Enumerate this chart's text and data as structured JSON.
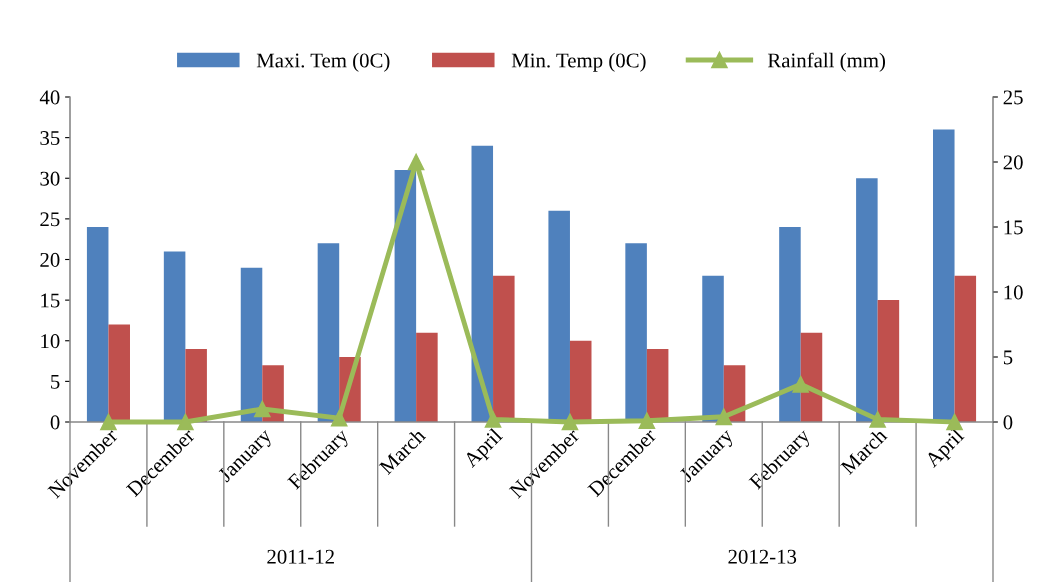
{
  "chart_data": {
    "type": "bar",
    "categories": [
      "November",
      "December",
      "January",
      "February",
      "March",
      "April",
      "November",
      "December",
      "January",
      "February",
      "March",
      "April"
    ],
    "series": [
      {
        "name": "Maxi. Tem (0C)",
        "color": "#4f81bd",
        "values": [
          24,
          21,
          19,
          22,
          31,
          34,
          26,
          22,
          18,
          24,
          30,
          36
        ]
      },
      {
        "name": "Min. Temp (0C)",
        "color": "#c0504d",
        "values": [
          12,
          9,
          7,
          8,
          11,
          18,
          10,
          9,
          7,
          11,
          15,
          18
        ]
      },
      {
        "name": "Rainfall (mm)",
        "type": "line",
        "axis": "y2",
        "color": "#9bbb59",
        "marker": "triangle",
        "values": [
          0,
          0,
          1,
          0.3,
          20,
          0.2,
          0,
          0.1,
          0.4,
          2.9,
          0.2,
          0
        ]
      }
    ],
    "ylim": [
      0,
      40
    ],
    "yticks": [
      0,
      5,
      10,
      15,
      20,
      25,
      30,
      35,
      40
    ],
    "y2lim": [
      0,
      25
    ],
    "y2ticks": [
      0,
      5,
      10,
      15,
      20,
      25
    ],
    "annotations": [
      "2011-12",
      "2012-13"
    ],
    "legend": "top",
    "grid": false
  }
}
